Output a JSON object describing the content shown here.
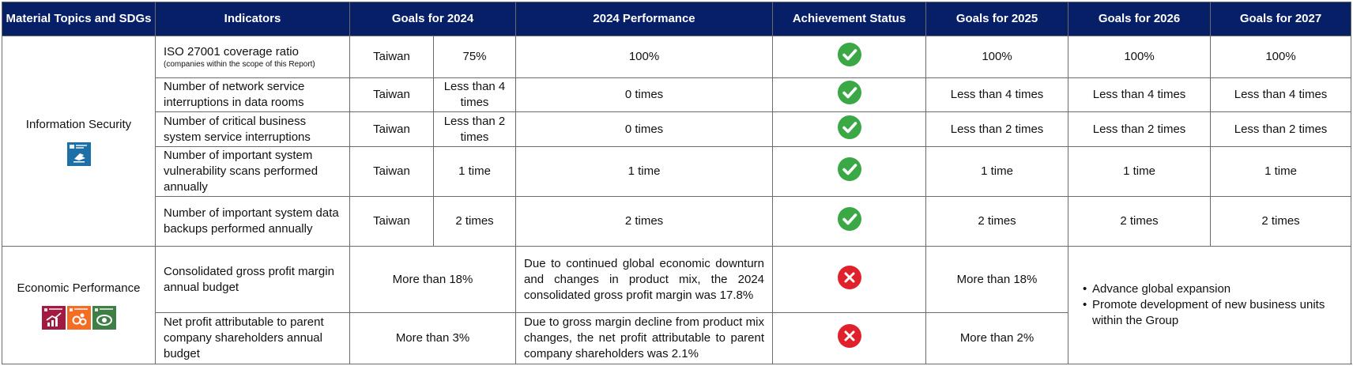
{
  "headers": {
    "topics": "Material Topics and SDGs",
    "indicators": "Indicators",
    "goals_2024": "Goals for 2024",
    "performance_2024": "2024 Performance",
    "status": "Achievement Status",
    "goals_2025": "Goals for 2025",
    "goals_2026": "Goals for 2026",
    "goals_2027": "Goals for 2027"
  },
  "info_security": {
    "topic": "Information Security",
    "sdg_icons": [
      "sdg-16-peace-justice-icon"
    ],
    "rows": [
      {
        "indicator": "ISO 27001 coverage ratio",
        "note": "(companies within the scope of this Report)",
        "region": "Taiwan",
        "goal_2024": "75%",
        "performance": "100%",
        "status": "achieved",
        "goal_2025": "100%",
        "goal_2026": "100%",
        "goal_2027": "100%"
      },
      {
        "indicator": "Number of network service interruptions in data rooms",
        "region": "Taiwan",
        "goal_2024": "Less than 4 times",
        "performance": "0 times",
        "status": "achieved",
        "goal_2025": "Less than 4 times",
        "goal_2026": "Less than 4 times",
        "goal_2027": "Less than 4 times"
      },
      {
        "indicator": "Number of critical business system service interruptions",
        "region": "Taiwan",
        "goal_2024": "Less than 2 times",
        "performance": "0 times",
        "status": "achieved",
        "goal_2025": "Less than 2 times",
        "goal_2026": "Less than 2 times",
        "goal_2027": "Less than 2 times"
      },
      {
        "indicator": "Number of important system vulnerability scans performed annually",
        "region": "Taiwan",
        "goal_2024": "1 time",
        "performance": "1 time",
        "status": "achieved",
        "goal_2025": "1 time",
        "goal_2026": "1 time",
        "goal_2027": "1 time"
      },
      {
        "indicator": "Number of important system data backups performed annually",
        "region": "Taiwan",
        "goal_2024": "2 times",
        "performance": "2 times",
        "status": "achieved",
        "goal_2025": "2 times",
        "goal_2026": "2 times",
        "goal_2027": "2 times"
      }
    ]
  },
  "economic": {
    "topic": "Economic Performance",
    "sdg_icons": [
      "sdg-8-decent-work-icon",
      "sdg-9-industry-innovation-icon",
      "sdg-13-climate-action-icon"
    ],
    "rows": [
      {
        "indicator": "Consolidated gross profit margin annual budget",
        "goal_2024": "More than 18%",
        "performance": "Due to continued global economic downturn and changes in product mix, the 2024 consolidated gross profit margin was 17.8%",
        "status": "not-achieved",
        "goal_2025": "More than 18%"
      },
      {
        "indicator": "Net profit attributable to parent company shareholders annual budget",
        "goal_2024": "More than 3%",
        "performance": "Due to gross margin decline from product mix changes, the net profit attributable to parent company shareholders was 2.1%",
        "status": "not-achieved",
        "goal_2025": "More than 2%"
      }
    ],
    "goals_2026_2027": [
      "Advance global expansion",
      "Promote development of new business units within the Group"
    ]
  },
  "colors": {
    "header_bg": "#061f66",
    "achieved": "#3aa845",
    "not_achieved": "#e0202a",
    "sdg16": "#1d6fa8",
    "sdg8": "#a21942",
    "sdg9": "#f36d25",
    "sdg13": "#3f7e44"
  }
}
